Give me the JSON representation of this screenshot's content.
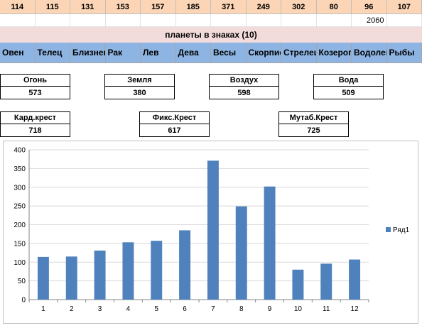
{
  "counts": [
    "114",
    "115",
    "131",
    "153",
    "157",
    "185",
    "371",
    "249",
    "302",
    "80",
    "96",
    "107"
  ],
  "total": "2060",
  "table_title": "планеты в знаках (10)",
  "signs": [
    "Овен",
    "Телец",
    "Близнецы",
    "Рак",
    "Лев",
    "Дева",
    "Весы",
    "Скорпион",
    "Стрелец",
    "Козерог",
    "Водолей",
    "Рыбы"
  ],
  "elements": [
    {
      "label": "Огонь",
      "value": "573"
    },
    {
      "label": "Земля",
      "value": "380"
    },
    {
      "label": "Воздух",
      "value": "598"
    },
    {
      "label": "Вода",
      "value": "509"
    }
  ],
  "crosses": [
    {
      "label": "Кард.крест",
      "value": "718"
    },
    {
      "label": "Фикс.Крест",
      "value": "617"
    },
    {
      "label": "Мутаб.Крест",
      "value": "725"
    }
  ],
  "series_color": "#4f81bd",
  "chart_data": {
    "type": "bar",
    "categories": [
      "1",
      "2",
      "3",
      "4",
      "5",
      "6",
      "7",
      "8",
      "9",
      "10",
      "11",
      "12"
    ],
    "series": [
      {
        "name": "Ряд1",
        "values": [
          114,
          115,
          131,
          153,
          157,
          185,
          371,
          249,
          302,
          80,
          96,
          107
        ]
      }
    ],
    "title": "",
    "xlabel": "",
    "ylabel": "",
    "ylim": [
      0,
      400
    ],
    "yticks": [
      "0",
      "50",
      "100",
      "150",
      "200",
      "250",
      "300",
      "350",
      "400"
    ],
    "grid": true,
    "legend": "right"
  }
}
